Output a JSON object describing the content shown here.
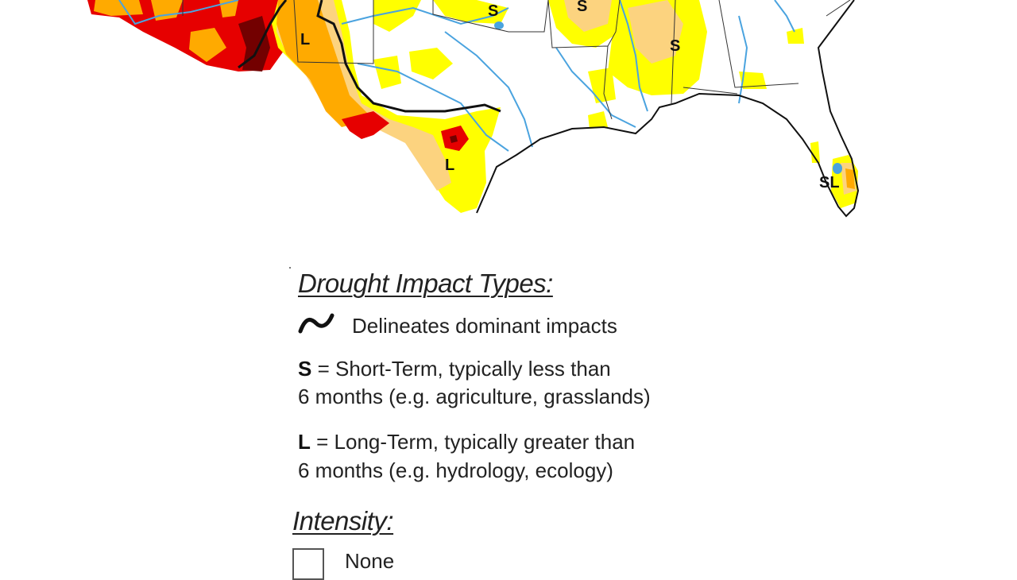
{
  "map": {
    "colors": {
      "none": "#ffffff",
      "d0_abnormally_dry": "#ffff00",
      "d1_moderate": "#fcd37f",
      "d2_severe": "#ffaa00",
      "d3_extreme": "#e60000",
      "d4_exceptional": "#730000",
      "water": "#4aa3df",
      "boundary": "#111111"
    },
    "labels": {
      "s_top_center": "S",
      "s_top_right": "S",
      "s_mississippi": "S",
      "l_new_mexico": "L",
      "l_south_texas": "L",
      "sl_florida": "SL"
    }
  },
  "legend": {
    "impact_types_title": "Drought Impact Types:",
    "delineates_icon": "delineation-curve-icon",
    "delineates_text": "Delineates dominant impacts",
    "short_term_code": "S",
    "short_term_line1": " = Short-Term, typically less than",
    "short_term_line2": "6 months (e.g. agriculture, grasslands)",
    "long_term_code": "L",
    "long_term_line1": " = Long-Term, typically greater than",
    "long_term_line2": "6 months (e.g. hydrology, ecology)",
    "intensity_title": "Intensity:",
    "intensity_items": [
      {
        "label": "None",
        "color": "#ffffff"
      }
    ]
  }
}
